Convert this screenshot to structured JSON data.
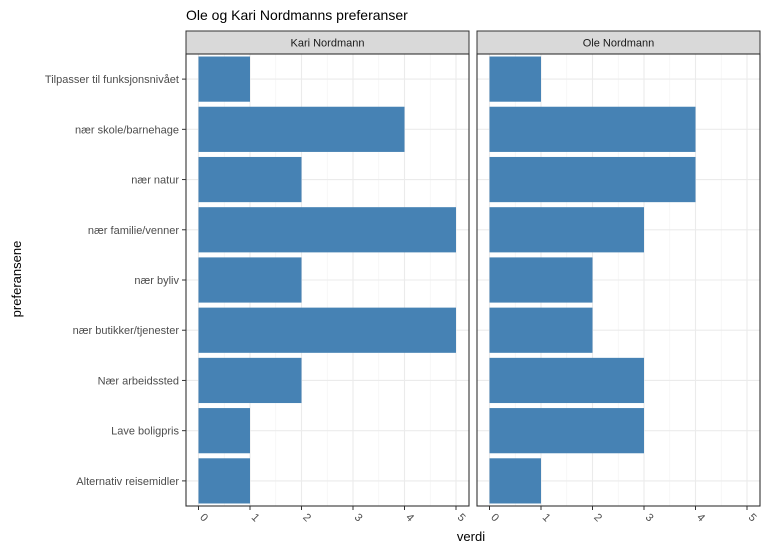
{
  "chart_data": {
    "type": "bar",
    "orientation": "horizontal",
    "title": "Ole og Kari Nordmanns preferanser",
    "xlabel": "verdi",
    "ylabel": "preferansene",
    "xlim": [
      0,
      5
    ],
    "xticks": [
      0,
      1,
      2,
      3,
      4,
      5
    ],
    "grid": true,
    "bar_color": "#4682B4",
    "categories": [
      "Tilpasser til funksjonsnivået",
      "nær skole/barnehage",
      "nær natur",
      "nær familie/venner",
      "nær byliv",
      "nær butikker/tjenester",
      "Nær arbeidssted",
      "Lave boligpris",
      "Alternativ reisemidler"
    ],
    "panels": [
      {
        "name": "Kari Nordmann",
        "values": [
          1,
          4,
          2,
          5,
          2,
          5,
          2,
          1,
          1
        ]
      },
      {
        "name": "Ole Nordmann",
        "values": [
          1,
          4,
          4,
          3,
          2,
          2,
          3,
          3,
          1
        ]
      }
    ]
  }
}
